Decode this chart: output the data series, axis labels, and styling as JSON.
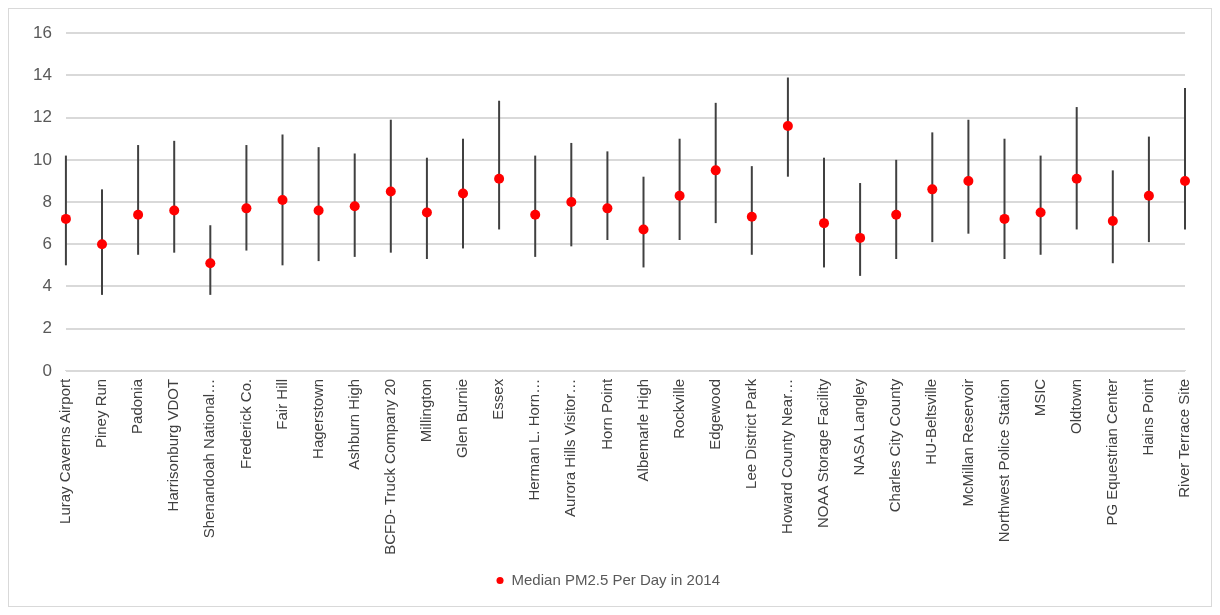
{
  "chart_data": {
    "type": "scatter",
    "categories": [
      "Luray Caverns Airport",
      "Piney Run",
      "Padonia",
      "Harrisonburg VDOT",
      "Shenandoah National…",
      "Frederick Co.",
      "Fair Hill",
      "Hagerstown",
      "Ashburn High",
      "BCFD- Truck Company 20",
      "Millington",
      "Glen Burnie",
      "Essex",
      "Herman L. Horn…",
      "Aurora Hills Visitor…",
      "Horn Point",
      "Albemarle High",
      "Rockville",
      "Edgewood",
      "Lee District Park",
      "Howard County Near…",
      "NOAA Storage Facility",
      "NASA Langley",
      "Charles City County",
      "HU-Beltsville",
      "McMillan Reservoir",
      "Northwest Police Station",
      "MSIC",
      "Oldtown",
      "PG Equestrian Center",
      "Hains Point",
      "River Terrace Site"
    ],
    "series": [
      {
        "name": "Median PM2.5 Per Day in 2014",
        "color": "#ff0000",
        "values": [
          7.2,
          6.0,
          7.4,
          7.6,
          5.1,
          7.7,
          8.1,
          7.6,
          7.8,
          8.5,
          7.5,
          8.4,
          9.1,
          7.4,
          8.0,
          7.7,
          6.7,
          8.3,
          9.5,
          7.3,
          11.6,
          7.0,
          6.3,
          7.4,
          8.6,
          9.0,
          7.2,
          7.5,
          9.1,
          7.1,
          8.3,
          9.0
        ],
        "errors": [
          [
            5.0,
            10.2
          ],
          [
            3.6,
            8.6
          ],
          [
            5.5,
            10.7
          ],
          [
            5.6,
            10.9
          ],
          [
            3.6,
            6.9
          ],
          [
            5.7,
            10.7
          ],
          [
            5.0,
            11.2
          ],
          [
            5.2,
            10.6
          ],
          [
            5.4,
            10.3
          ],
          [
            5.6,
            11.9
          ],
          [
            5.3,
            10.1
          ],
          [
            5.8,
            11.0
          ],
          [
            6.7,
            12.8
          ],
          [
            5.4,
            10.2
          ],
          [
            5.9,
            10.8
          ],
          [
            6.2,
            10.4
          ],
          [
            4.9,
            9.2
          ],
          [
            6.2,
            11.0
          ],
          [
            7.0,
            12.7
          ],
          [
            5.5,
            9.7
          ],
          [
            9.2,
            13.9
          ],
          [
            4.9,
            10.1
          ],
          [
            4.5,
            8.9
          ],
          [
            5.3,
            10.0
          ],
          [
            6.1,
            11.3
          ],
          [
            6.5,
            11.9
          ],
          [
            5.3,
            11.0
          ],
          [
            5.5,
            10.2
          ],
          [
            6.7,
            12.5
          ],
          [
            5.1,
            9.5
          ],
          [
            6.1,
            11.1
          ],
          [
            6.7,
            13.4
          ]
        ]
      }
    ],
    "ylim": [
      0,
      16
    ],
    "yticks": [
      0,
      2,
      4,
      6,
      8,
      10,
      12,
      14,
      16
    ],
    "grid": "y",
    "legend": "bottom",
    "marker": "circle"
  }
}
